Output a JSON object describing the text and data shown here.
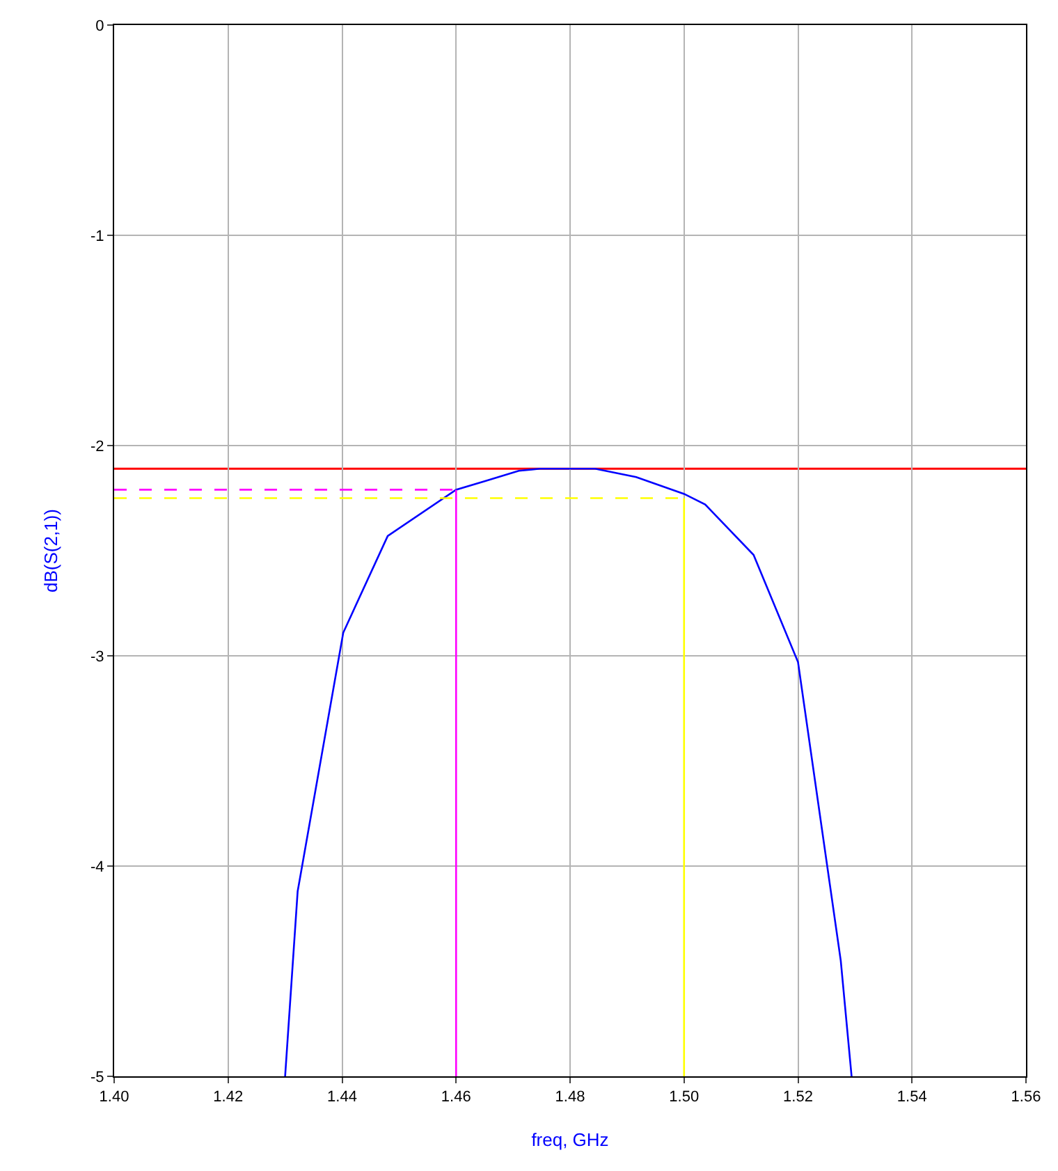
{
  "chart_data": {
    "type": "line",
    "xlabel": "freq, GHz",
    "ylabel": "dB(S(2,1))",
    "xlim": [
      1.4,
      1.56
    ],
    "ylim": [
      -5,
      0
    ],
    "xticks": [
      {
        "value": 1.4,
        "label": "1.40"
      },
      {
        "value": 1.42,
        "label": "1.42"
      },
      {
        "value": 1.44,
        "label": "1.44"
      },
      {
        "value": 1.46,
        "label": "1.46"
      },
      {
        "value": 1.48,
        "label": "1.48"
      },
      {
        "value": 1.5,
        "label": "1.50"
      },
      {
        "value": 1.52,
        "label": "1.52"
      },
      {
        "value": 1.54,
        "label": "1.54"
      },
      {
        "value": 1.56,
        "label": "1.56"
      }
    ],
    "yticks": [
      -5,
      -4,
      -3,
      -2,
      -1,
      0
    ],
    "grid": true,
    "marker": "none",
    "series": [
      {
        "color": "#0000ff",
        "line_style": "solid",
        "x": [
          1.43,
          1.4322,
          1.4402,
          1.448,
          1.46,
          1.465,
          1.471,
          1.4747,
          1.4844,
          1.4916,
          1.5,
          1.5037,
          1.5122,
          1.52,
          1.5275,
          1.5294
        ],
        "values": [
          -5,
          -4.12,
          -2.89,
          -2.43,
          -2.21,
          -2.17,
          -2.12,
          -2.11,
          -2.11,
          -2.15,
          -2.23,
          -2.28,
          -2.52,
          -3.03,
          -4.45,
          -5
        ]
      },
      {
        "color": "#ff00ff",
        "line_style": "dashed",
        "x": [
          1.4,
          1.46
        ],
        "values": [
          -2.21,
          -2.21
        ]
      },
      {
        "color": "#ff00ff",
        "line_style": "solid",
        "x": [
          1.46,
          1.46
        ],
        "values": [
          -2.21,
          -5
        ]
      },
      {
        "color": "#ffff00",
        "line_style": "dashed",
        "x": [
          1.4,
          1.5
        ],
        "values": [
          -2.25,
          -2.25
        ]
      },
      {
        "color": "#ffff00",
        "line_style": "solid",
        "x": [
          1.5,
          1.5
        ],
        "values": [
          -2.25,
          -5
        ]
      }
    ],
    "ref_lines": [
      {
        "axis": "y",
        "value": -2.11,
        "color": "#ff0000",
        "line_style": "solid"
      }
    ]
  }
}
